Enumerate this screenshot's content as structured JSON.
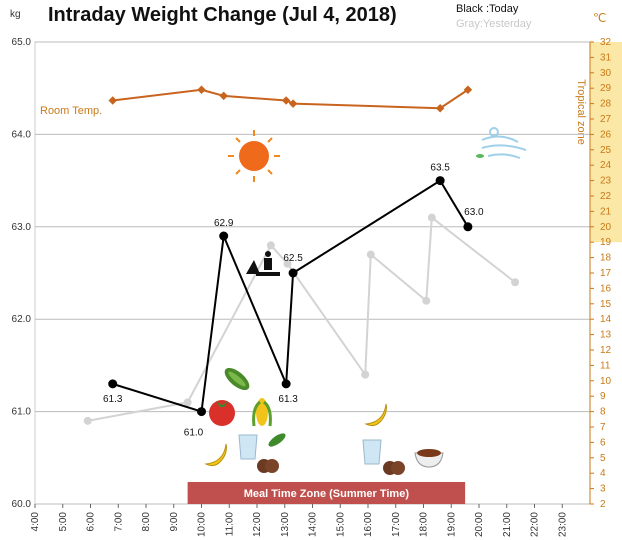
{
  "chart_data": {
    "type": "line",
    "title": "Intraday Weight Change (Jul 4, 2018)",
    "legend": {
      "today": "Black :Today",
      "yesterday": "Gray:Yesterday"
    },
    "y_left_unit": "kg",
    "y_right_unit": "℃",
    "ylim": [
      60.0,
      65.0
    ],
    "y_ticks": [
      "60.0",
      "61.0",
      "62.0",
      "63.0",
      "64.0",
      "65.0"
    ],
    "y2lim": [
      2,
      32
    ],
    "y2_ticks": [
      "2",
      "3",
      "4",
      "5",
      "6",
      "7",
      "8",
      "9",
      "10",
      "11",
      "12",
      "13",
      "14",
      "15",
      "16",
      "17",
      "18",
      "19",
      "20",
      "21",
      "22",
      "23",
      "24",
      "25",
      "26",
      "27",
      "28",
      "29",
      "30",
      "31",
      "32"
    ],
    "x_ticks": [
      "4:00",
      "5:00",
      "6:00",
      "7:00",
      "8:00",
      "9:00",
      "10:00",
      "11:00",
      "12:00",
      "13:00",
      "14:00",
      "15:00",
      "16:00",
      "17:00",
      "18:00",
      "19:00",
      "20:00",
      "21:00",
      "22:00",
      "23:00"
    ],
    "xlim": [
      4,
      24
    ],
    "series": [
      {
        "name": "Today",
        "color": "#000000",
        "points": [
          {
            "x": 6.8,
            "y": 61.3,
            "label": "61.3"
          },
          {
            "x": 10.0,
            "y": 61.0,
            "label": "61.0"
          },
          {
            "x": 10.8,
            "y": 62.9,
            "label": "62.9"
          },
          {
            "x": 13.05,
            "y": 61.3,
            "label": "61.3"
          },
          {
            "x": 13.3,
            "y": 62.5,
            "label": "62.5"
          },
          {
            "x": 18.6,
            "y": 63.5,
            "label": "63.5"
          },
          {
            "x": 19.6,
            "y": 63.0,
            "label": "63.0"
          }
        ]
      },
      {
        "name": "Yesterday",
        "color": "#d3d3d3",
        "points": [
          {
            "x": 5.9,
            "y": 60.9
          },
          {
            "x": 9.5,
            "y": 61.1
          },
          {
            "x": 12.5,
            "y": 62.8
          },
          {
            "x": 13.1,
            "y": 62.6
          },
          {
            "x": 15.9,
            "y": 61.4
          },
          {
            "x": 16.1,
            "y": 62.7
          },
          {
            "x": 18.1,
            "y": 62.2
          },
          {
            "x": 18.3,
            "y": 63.1
          },
          {
            "x": 21.3,
            "y": 62.4
          }
        ]
      },
      {
        "name": "Room Temp.",
        "color": "#c8641e",
        "axis": "right",
        "points": [
          {
            "x": 6.8,
            "y": 28.2
          },
          {
            "x": 10.0,
            "y": 28.9
          },
          {
            "x": 10.8,
            "y": 28.5
          },
          {
            "x": 13.05,
            "y": 28.2
          },
          {
            "x": 13.3,
            "y": 28.0
          },
          {
            "x": 18.6,
            "y": 27.7
          },
          {
            "x": 19.6,
            "y": 28.9
          }
        ]
      }
    ],
    "room_temp_label": "Room Temp.",
    "tropical_zone": {
      "label": "Tropical zone",
      "from": 19,
      "to": 32
    },
    "meal_zone": {
      "label": "Meal Time Zone (Summer Time)",
      "from": 9.5,
      "to": 19.5
    },
    "grid": true,
    "colors": {
      "today": "#000000",
      "yesterday": "#d3d3d3",
      "temp": "#c8641e",
      "tropical": "#fbe7a6",
      "meal_band": "#c0504d"
    }
  },
  "icons": [
    "sun-icon",
    "wind-icon",
    "gardening-icon",
    "cucumber-icon",
    "tomato-icon",
    "corn-icon",
    "banana-icon",
    "water-glass-icon",
    "edamame-icon",
    "chocolate-cookie-icon",
    "soup-bowl-icon"
  ]
}
